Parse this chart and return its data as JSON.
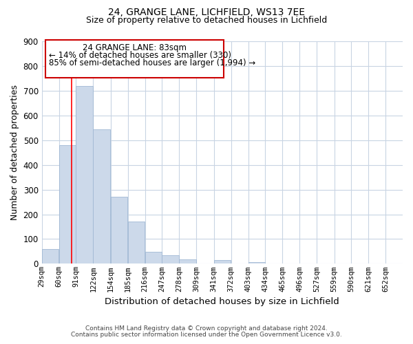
{
  "title1": "24, GRANGE LANE, LICHFIELD, WS13 7EE",
  "title2": "Size of property relative to detached houses in Lichfield",
  "xlabel": "Distribution of detached houses by size in Lichfield",
  "ylabel": "Number of detached properties",
  "bar_labels": [
    "29sqm",
    "60sqm",
    "91sqm",
    "122sqm",
    "154sqm",
    "185sqm",
    "216sqm",
    "247sqm",
    "278sqm",
    "309sqm",
    "341sqm",
    "372sqm",
    "403sqm",
    "434sqm",
    "465sqm",
    "496sqm",
    "527sqm",
    "559sqm",
    "590sqm",
    "621sqm",
    "652sqm"
  ],
  "bar_values": [
    60,
    480,
    720,
    545,
    272,
    172,
    48,
    35,
    18,
    0,
    15,
    0,
    8,
    0,
    0,
    0,
    0,
    0,
    0,
    0,
    0
  ],
  "bar_color": "#ccd9ea",
  "bar_edge_color": "#a0b8d4",
  "annotation_line1": "24 GRANGE LANE: 83sqm",
  "annotation_line2": "← 14% of detached houses are smaller (330)",
  "annotation_line3": "85% of semi-detached houses are larger (1,994) →",
  "redline_x": 83,
  "ylim": [
    0,
    900
  ],
  "yticks": [
    0,
    100,
    200,
    300,
    400,
    500,
    600,
    700,
    800,
    900
  ],
  "footer1": "Contains HM Land Registry data © Crown copyright and database right 2024.",
  "footer2": "Contains public sector information licensed under the Open Government Licence v3.0.",
  "bg_color": "#ffffff",
  "grid_color": "#c8d4e3",
  "bin_width": 31
}
